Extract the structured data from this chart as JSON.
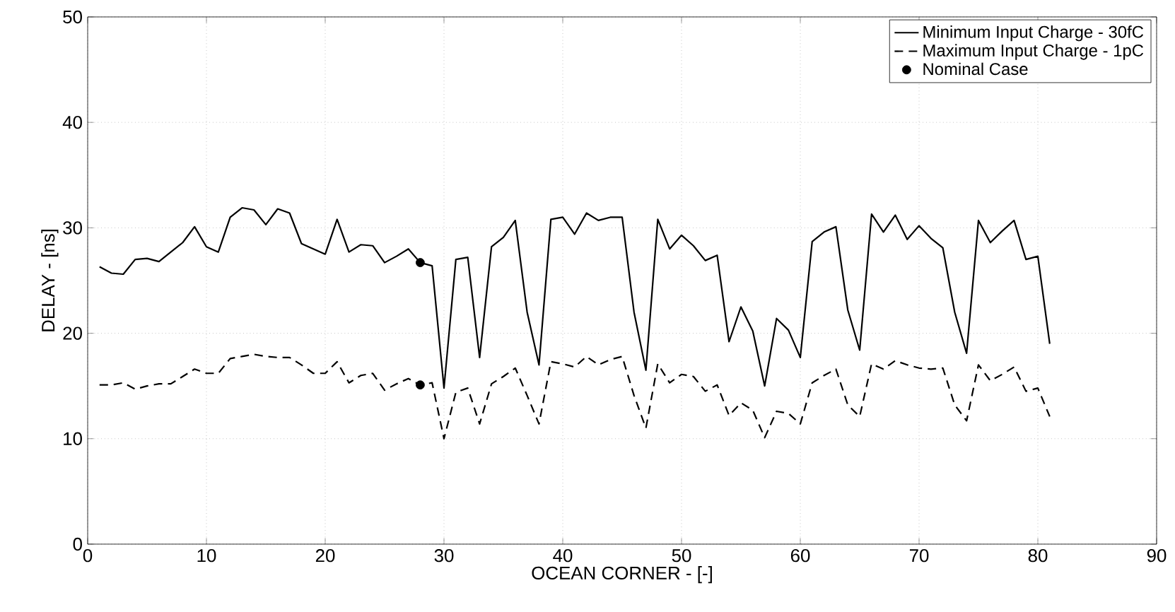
{
  "chart_data": {
    "type": "line",
    "xlabel": "OCEAN CORNER - [-]",
    "ylabel": "DELAY - [ns]",
    "xlim": [
      0,
      90
    ],
    "ylim": [
      0,
      50
    ],
    "xticks": [
      0,
      10,
      20,
      30,
      40,
      50,
      60,
      70,
      80,
      90
    ],
    "yticks": [
      0,
      10,
      20,
      30,
      40,
      50
    ],
    "grid": true,
    "legend": "top right",
    "marker": "none",
    "series": [
      {
        "name": "Minimum Input Charge - 30fC",
        "color": "#000000",
        "line_style": "solid",
        "x": [
          1,
          2,
          3,
          4,
          5,
          6,
          7,
          8,
          9,
          10,
          11,
          12,
          13,
          14,
          15,
          16,
          17,
          18,
          19,
          20,
          21,
          22,
          23,
          24,
          25,
          26,
          27,
          28,
          29,
          30,
          31,
          32,
          33,
          34,
          35,
          36,
          37,
          38,
          39,
          40,
          41,
          42,
          43,
          44,
          45,
          46,
          47,
          48,
          49,
          50,
          51,
          52,
          53,
          54,
          55,
          56,
          57,
          58,
          59,
          60,
          61,
          62,
          63,
          64,
          65,
          66,
          67,
          68,
          69,
          70,
          71,
          72,
          73,
          74,
          75,
          76,
          77,
          78,
          79,
          80,
          81
        ],
        "values": [
          26.3,
          25.7,
          25.6,
          27.0,
          27.1,
          26.8,
          27.7,
          28.6,
          30.1,
          28.2,
          27.7,
          31.0,
          31.9,
          31.7,
          30.3,
          31.8,
          31.4,
          28.5,
          28.0,
          27.5,
          30.8,
          27.7,
          28.4,
          28.3,
          26.7,
          27.3,
          28.0,
          26.7,
          26.4,
          14.8,
          27.0,
          27.2,
          17.7,
          28.2,
          29.1,
          30.7,
          22.0,
          17.0,
          30.8,
          31.0,
          29.4,
          31.4,
          30.7,
          31.0,
          31.0,
          22.0,
          16.5,
          30.8,
          28.0,
          29.3,
          28.3,
          26.9,
          27.4,
          19.2,
          22.5,
          20.2,
          15.0,
          21.4,
          20.3,
          17.7,
          28.7,
          29.6,
          30.1,
          22.2,
          18.4,
          31.3,
          29.6,
          31.2,
          28.9,
          30.2,
          29.0,
          28.1,
          22.0,
          18.1,
          30.7,
          28.6,
          29.7,
          30.7,
          27.0,
          27.3,
          19.0
        ]
      },
      {
        "name": "Maximum Input Charge - 1pC",
        "color": "#000000",
        "line_style": "dashed",
        "x": [
          1,
          2,
          3,
          4,
          5,
          6,
          7,
          8,
          9,
          10,
          11,
          12,
          13,
          14,
          15,
          16,
          17,
          18,
          19,
          20,
          21,
          22,
          23,
          24,
          25,
          26,
          27,
          28,
          29,
          30,
          31,
          32,
          33,
          34,
          35,
          36,
          37,
          38,
          39,
          40,
          41,
          42,
          43,
          44,
          45,
          46,
          47,
          48,
          49,
          50,
          51,
          52,
          53,
          54,
          55,
          56,
          57,
          58,
          59,
          60,
          61,
          62,
          63,
          64,
          65,
          66,
          67,
          68,
          69,
          70,
          71,
          72,
          73,
          74,
          75,
          76,
          77,
          78,
          79,
          80,
          81
        ],
        "values": [
          15.1,
          15.1,
          15.3,
          14.7,
          15.0,
          15.2,
          15.2,
          15.9,
          16.6,
          16.2,
          16.2,
          17.6,
          17.8,
          18.0,
          17.8,
          17.7,
          17.7,
          17.0,
          16.2,
          16.2,
          17.3,
          15.3,
          16.0,
          16.2,
          14.6,
          15.2,
          15.7,
          15.1,
          15.3,
          10.0,
          14.4,
          14.8,
          11.4,
          15.2,
          15.9,
          16.7,
          14.1,
          11.4,
          17.3,
          17.1,
          16.8,
          17.8,
          17.0,
          17.5,
          17.8,
          14.1,
          11.0,
          17.1,
          15.3,
          16.1,
          15.9,
          14.5,
          15.1,
          12.2,
          13.4,
          12.7,
          10.1,
          12.6,
          12.4,
          11.4,
          15.3,
          16.0,
          16.6,
          13.2,
          12.1,
          17.1,
          16.6,
          17.4,
          17.0,
          16.7,
          16.6,
          16.7,
          13.2,
          11.7,
          17.0,
          15.5,
          16.1,
          16.8,
          14.5,
          14.8,
          12.1
        ]
      },
      {
        "name": "Nominal Case",
        "type": "scatter",
        "marker": "circle",
        "color": "#000000",
        "x": [
          28,
          28
        ],
        "values": [
          26.7,
          15.1
        ]
      }
    ]
  }
}
